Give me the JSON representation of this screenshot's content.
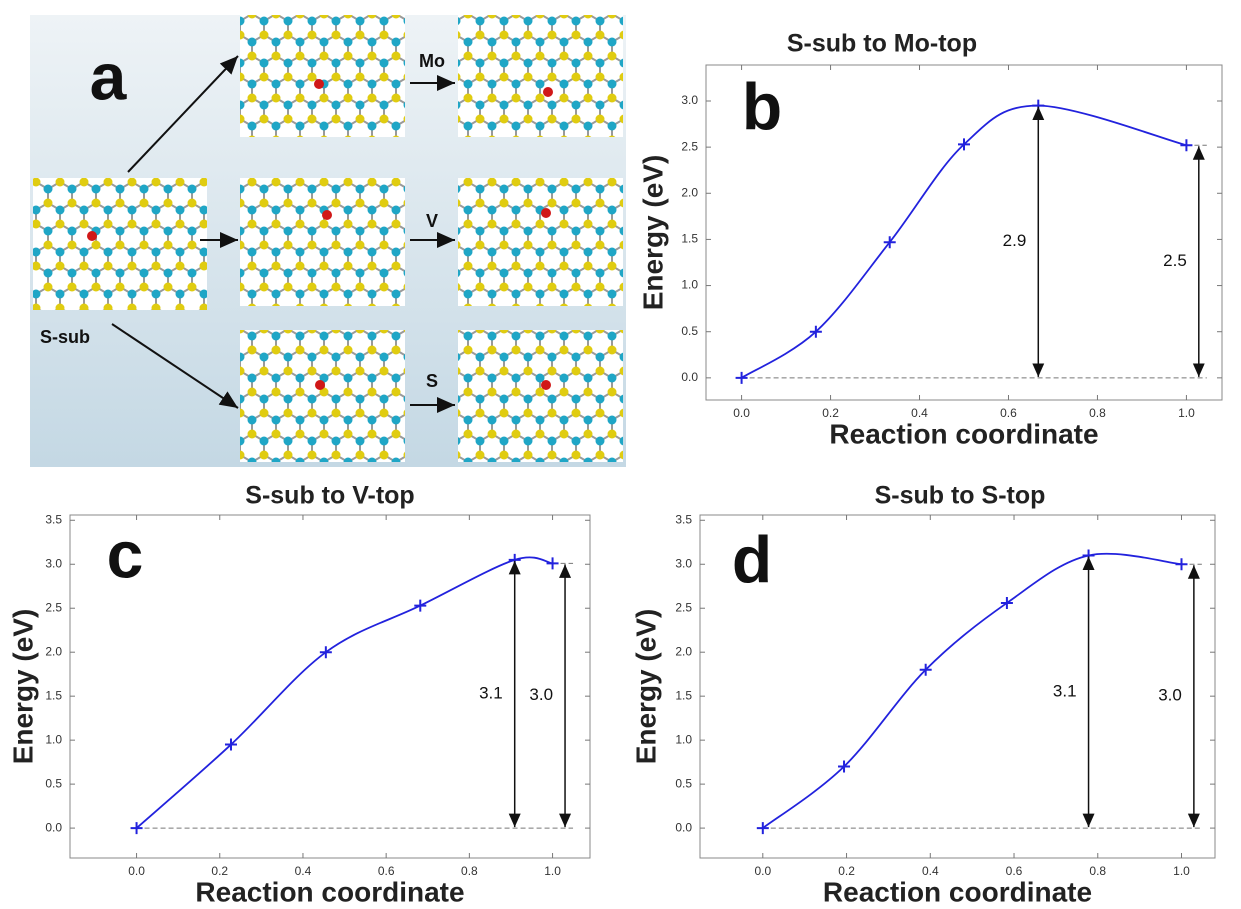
{
  "diagram": {
    "panel": "a",
    "start": "S-sub",
    "routes": [
      "Mo",
      "V",
      "S"
    ]
  },
  "chart_data": [
    {
      "type": "line",
      "panel": "b",
      "title": "S-sub to Mo-top",
      "xlabel": "Reaction coordinate",
      "ylabel": "Energy (eV)",
      "x": [
        0,
        0.167,
        0.333,
        0.5,
        0.667,
        1.0
      ],
      "values": [
        0,
        0.5,
        1.47,
        2.53,
        2.95,
        2.52
      ],
      "color": "#2222dd",
      "xlim": [
        -0.08,
        1.08
      ],
      "ylim": [
        -0.24,
        3.39
      ],
      "xticks": [
        {
          "value": 0,
          "label": "0.0"
        },
        {
          "value": 0.2,
          "label": "0.2"
        },
        {
          "value": 0.4,
          "label": "0.4"
        },
        {
          "value": 0.6,
          "label": "0.6"
        },
        {
          "value": 0.8,
          "label": "0.8"
        },
        {
          "value": 1,
          "label": "1.0"
        }
      ],
      "yticks": [
        {
          "value": 0,
          "label": "0.0"
        },
        {
          "value": 0.5,
          "label": "0.5"
        },
        {
          "value": 1,
          "label": "1.0"
        },
        {
          "value": 1.5,
          "label": "1.5"
        },
        {
          "value": 2,
          "label": "2.0"
        },
        {
          "value": 2.5,
          "label": "2.5"
        },
        {
          "value": 3,
          "label": "3.0"
        }
      ],
      "annotations": [
        "2.9",
        "2.5"
      ]
    },
    {
      "type": "line",
      "panel": "c",
      "title": "S-sub to V-top",
      "xlabel": "Reaction coordinate",
      "ylabel": "Energy (eV)",
      "x": [
        0,
        0.227,
        0.455,
        0.682,
        0.909,
        1.0
      ],
      "values": [
        0,
        0.95,
        2.0,
        2.53,
        3.05,
        3.01
      ],
      "color": "#2222dd",
      "xlim": [
        -0.16,
        1.09
      ],
      "ylim": [
        -0.34,
        3.56
      ],
      "xticks": [
        {
          "value": 0,
          "label": "0.0"
        },
        {
          "value": 0.2,
          "label": "0.2"
        },
        {
          "value": 0.4,
          "label": "0.4"
        },
        {
          "value": 0.6,
          "label": "0.6"
        },
        {
          "value": 0.8,
          "label": "0.8"
        },
        {
          "value": 1,
          "label": "1.0"
        }
      ],
      "yticks": [
        {
          "value": 0,
          "label": "0.0"
        },
        {
          "value": 0.5,
          "label": "0.5"
        },
        {
          "value": 1,
          "label": "1.0"
        },
        {
          "value": 1.5,
          "label": "1.5"
        },
        {
          "value": 2,
          "label": "2.0"
        },
        {
          "value": 2.5,
          "label": "2.5"
        },
        {
          "value": 3,
          "label": "3.0"
        },
        {
          "value": 3.5,
          "label": "3.5"
        }
      ],
      "annotations": [
        "3.1",
        "3.0"
      ]
    },
    {
      "type": "line",
      "panel": "d",
      "title": "S-sub to S-top",
      "xlabel": "Reaction coordinate",
      "ylabel": "Energy (eV)",
      "x": [
        0,
        0.194,
        0.389,
        0.583,
        0.778,
        1.0
      ],
      "values": [
        0,
        0.7,
        1.8,
        2.56,
        3.1,
        3.0
      ],
      "color": "#2222dd",
      "xlim": [
        -0.15,
        1.08
      ],
      "ylim": [
        -0.34,
        3.56
      ],
      "xticks": [
        {
          "value": 0,
          "label": "0.0"
        },
        {
          "value": 0.2,
          "label": "0.2"
        },
        {
          "value": 0.4,
          "label": "0.4"
        },
        {
          "value": 0.6,
          "label": "0.6"
        },
        {
          "value": 0.8,
          "label": "0.8"
        },
        {
          "value": 1,
          "label": "1.0"
        }
      ],
      "yticks": [
        {
          "value": 0,
          "label": "0.0"
        },
        {
          "value": 0.5,
          "label": "0.5"
        },
        {
          "value": 1,
          "label": "1.0"
        },
        {
          "value": 1.5,
          "label": "1.5"
        },
        {
          "value": 2,
          "label": "2.0"
        },
        {
          "value": 2.5,
          "label": "2.5"
        },
        {
          "value": 3,
          "label": "3.0"
        },
        {
          "value": 3.5,
          "label": "3.5"
        }
      ],
      "annotations": [
        "3.1",
        "3.0"
      ]
    }
  ]
}
